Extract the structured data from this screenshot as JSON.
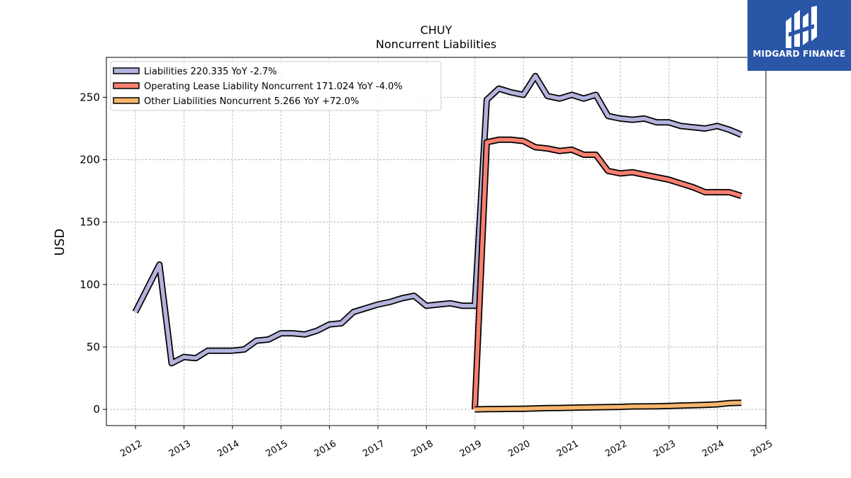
{
  "chart_data": {
    "type": "line",
    "title": "CHUY",
    "subtitle": "Noncurrent  Liabilities",
    "ylabel": "USD",
    "xlabel": "",
    "xlim": [
      2011.4,
      2025.0
    ],
    "ylim": [
      -13,
      282
    ],
    "yticks": [
      0,
      50,
      100,
      150,
      200,
      250
    ],
    "xticks": [
      "2012",
      "2013",
      "2014",
      "2015",
      "2016",
      "2017",
      "2018",
      "2019",
      "2020",
      "2021",
      "2022",
      "2023",
      "2024",
      "2025"
    ],
    "grid": true,
    "legend_position": "top-left",
    "series": [
      {
        "name": "Liabilities  220.335 YoY -2.7%",
        "color": "#b3b3dd",
        "x": [
          "2011-12-31",
          "2012-06-30",
          "2012-09-30",
          "2012-12-31",
          "2013-03-31",
          "2013-06-30",
          "2013-09-30",
          "2013-12-31",
          "2014-03-31",
          "2014-06-30",
          "2014-09-30",
          "2014-12-31",
          "2015-03-31",
          "2015-06-30",
          "2015-09-30",
          "2015-12-31",
          "2016-03-31",
          "2016-06-30",
          "2016-09-30",
          "2016-12-31",
          "2017-03-31",
          "2017-06-30",
          "2017-09-30",
          "2017-12-31",
          "2018-03-31",
          "2018-06-30",
          "2018-09-30",
          "2018-12-31",
          "2019-03-31",
          "2019-06-30",
          "2019-09-30",
          "2019-12-31",
          "2020-03-31",
          "2020-06-30",
          "2020-09-30",
          "2020-12-31",
          "2021-03-31",
          "2021-06-30",
          "2021-09-30",
          "2021-12-31",
          "2022-03-31",
          "2022-06-30",
          "2022-09-30",
          "2022-12-31",
          "2023-03-31",
          "2023-06-30",
          "2023-09-30",
          "2023-12-31",
          "2024-03-31",
          "2024-06-30"
        ],
        "values": [
          78,
          116,
          37,
          42,
          41,
          47,
          47,
          47,
          48,
          55,
          56,
          61,
          61,
          60,
          63,
          68,
          69,
          78,
          81,
          84,
          86,
          89,
          91,
          83,
          84,
          85,
          83,
          83,
          248,
          257,
          254,
          252,
          267,
          251,
          249,
          252,
          249,
          252,
          235,
          233,
          232,
          233,
          230,
          230,
          227,
          226,
          225,
          227,
          224,
          220
        ]
      },
      {
        "name": "Operating Lease Liability Noncurrent  171.024 YoY -4.0%",
        "color": "#f88070",
        "x": [
          "2018-12-31",
          "2019-03-31",
          "2019-06-30",
          "2019-09-30",
          "2019-12-31",
          "2020-03-31",
          "2020-06-30",
          "2020-09-30",
          "2020-12-31",
          "2021-03-31",
          "2021-06-30",
          "2021-09-30",
          "2021-12-31",
          "2022-03-31",
          "2022-06-30",
          "2022-09-30",
          "2022-12-31",
          "2023-03-31",
          "2023-06-30",
          "2023-09-30",
          "2023-12-31",
          "2024-03-31",
          "2024-06-30"
        ],
        "values": [
          0,
          214,
          216,
          216,
          215,
          210,
          209,
          207,
          208,
          204,
          204,
          191,
          189,
          190,
          188,
          186,
          184,
          181,
          178,
          174,
          174,
          174,
          171
        ]
      },
      {
        "name": "Other Liabilities Noncurrent  5.266 YoY +72.0%",
        "color": "#f7b56d",
        "x": [
          "2018-12-31",
          "2019-03-31",
          "2019-06-30",
          "2019-09-30",
          "2019-12-31",
          "2020-03-31",
          "2020-06-30",
          "2020-09-30",
          "2020-12-31",
          "2021-03-31",
          "2021-06-30",
          "2021-09-30",
          "2021-12-31",
          "2022-03-31",
          "2022-06-30",
          "2022-09-30",
          "2022-12-31",
          "2023-03-31",
          "2023-06-30",
          "2023-09-30",
          "2023-12-31",
          "2024-03-31",
          "2024-06-30"
        ],
        "values": [
          0,
          0.2,
          0.3,
          0.4,
          0.5,
          0.8,
          1.0,
          1.1,
          1.3,
          1.5,
          1.7,
          1.8,
          2.0,
          2.3,
          2.4,
          2.5,
          2.7,
          3.0,
          3.3,
          3.6,
          4.0,
          5.0,
          5.3
        ]
      }
    ]
  },
  "logo": {
    "text": "MIDGARD FINANCE",
    "background": "#2a56a8"
  }
}
